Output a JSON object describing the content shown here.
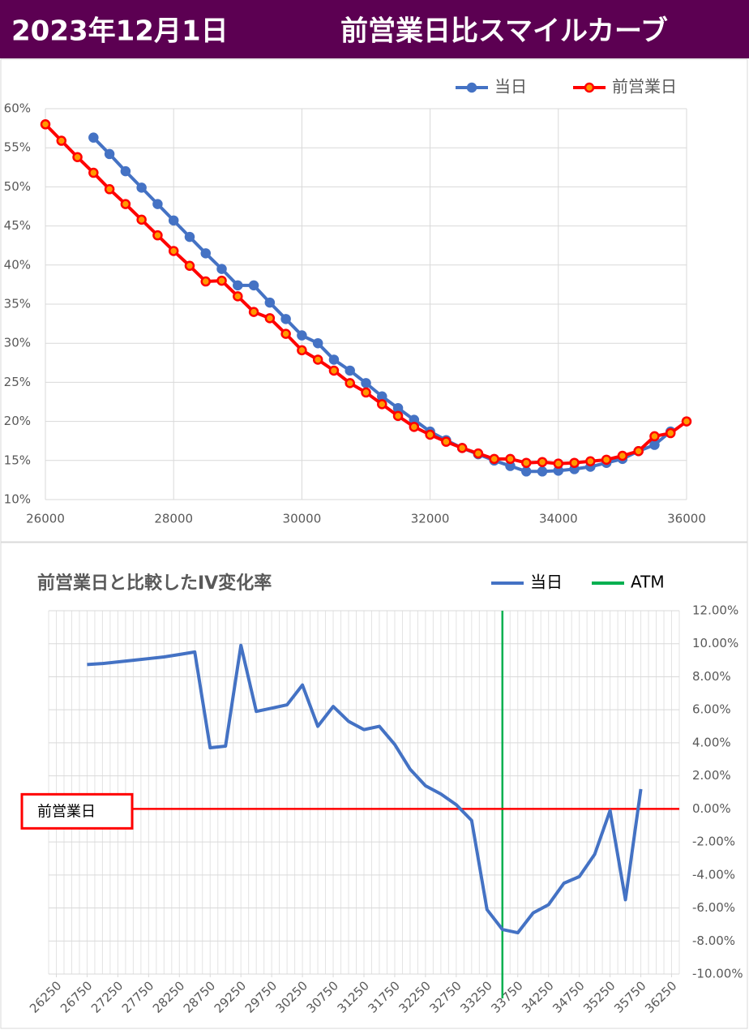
{
  "header": {
    "date": "2023年12月1日",
    "title": "前営業日比スマイルカーブ"
  },
  "chart_data": [
    {
      "type": "line",
      "x": [
        26000,
        26250,
        26500,
        26750,
        27000,
        27250,
        27500,
        27750,
        28000,
        28250,
        28500,
        28750,
        29000,
        29250,
        29500,
        29750,
        30000,
        30250,
        30500,
        30750,
        31000,
        31250,
        31500,
        31750,
        32000,
        32250,
        32500,
        32750,
        33000,
        33250,
        33500,
        33750,
        34000,
        34250,
        34500,
        34750,
        35000,
        35250,
        35500,
        35750,
        36000
      ],
      "series": [
        {
          "name": "当日",
          "color": "#4472c4",
          "markers": true,
          "marker_fill": "#4472c4",
          "values": [
            null,
            null,
            null,
            56.3,
            54.2,
            52.0,
            49.9,
            47.8,
            45.7,
            43.6,
            41.5,
            39.5,
            37.4,
            37.4,
            35.2,
            33.1,
            31.0,
            30.0,
            27.9,
            26.5,
            24.9,
            23.2,
            21.7,
            20.2,
            18.7,
            17.6,
            16.6,
            15.8,
            15.0,
            14.3,
            13.6,
            13.6,
            13.7,
            13.9,
            14.2,
            14.7,
            15.2,
            16.2,
            17.0,
            18.7,
            null
          ]
        },
        {
          "name": "前営業日",
          "color": "#ff0000",
          "markers": true,
          "marker_fill": "#ff9900",
          "values": [
            58.0,
            55.9,
            53.8,
            51.8,
            49.7,
            47.8,
            45.8,
            43.8,
            41.8,
            39.9,
            37.9,
            38.0,
            36.0,
            34.0,
            33.2,
            31.2,
            29.1,
            27.9,
            26.5,
            24.9,
            23.7,
            22.2,
            20.7,
            19.3,
            18.3,
            17.4,
            16.6,
            15.9,
            15.2,
            15.2,
            14.7,
            14.8,
            14.6,
            14.7,
            14.9,
            15.1,
            15.6,
            16.2,
            18.1,
            18.5,
            20.0
          ]
        }
      ],
      "xlim": [
        26000,
        36000
      ],
      "xticks": [
        26000,
        28000,
        30000,
        32000,
        34000,
        36000
      ],
      "ylim": [
        10,
        60
      ],
      "yticks": [
        {
          "value": 10,
          "label": "10%"
        },
        {
          "value": 15,
          "label": "15%"
        },
        {
          "value": 20,
          "label": "20%"
        },
        {
          "value": 25,
          "label": "25%"
        },
        {
          "value": 30,
          "label": "30%"
        },
        {
          "value": 35,
          "label": "35%"
        },
        {
          "value": 40,
          "label": "40%"
        },
        {
          "value": 45,
          "label": "45%"
        },
        {
          "value": 50,
          "label": "50%"
        },
        {
          "value": 55,
          "label": "55%"
        },
        {
          "value": 60,
          "label": "60%"
        }
      ],
      "grid": true,
      "legend": "top-right"
    },
    {
      "type": "line",
      "title": "前営業日と比較したIV変化率",
      "x": [
        26750,
        27000,
        27250,
        27500,
        27750,
        28000,
        28250,
        28500,
        28750,
        29000,
        29250,
        29500,
        29750,
        30000,
        30250,
        30500,
        30750,
        31000,
        31250,
        31500,
        31750,
        32000,
        32250,
        32500,
        32750,
        33000,
        33250,
        33500,
        33750,
        34000,
        34250,
        34500,
        34750,
        35000,
        35250,
        35500,
        35750
      ],
      "series": [
        {
          "name": "当日",
          "color": "#4472c4",
          "values": [
            8.74,
            8.8,
            8.9,
            9.0,
            9.1,
            9.2,
            9.35,
            9.5,
            3.7,
            3.8,
            9.9,
            5.9,
            6.1,
            6.3,
            7.5,
            5.0,
            6.2,
            5.3,
            4.8,
            5.0,
            3.9,
            2.4,
            1.4,
            0.9,
            0.25,
            -0.7,
            -6.1,
            -7.3,
            -7.5,
            -6.3,
            -5.8,
            -4.5,
            -4.1,
            -2.75,
            -0.1,
            -5.5,
            1.2
          ]
        }
      ],
      "xlim": [
        26125,
        36375
      ],
      "xticks": [
        26250,
        26750,
        27250,
        27750,
        28250,
        28750,
        29250,
        29750,
        30250,
        30750,
        31250,
        31750,
        32250,
        32750,
        33250,
        33750,
        34250,
        34750,
        35250,
        35750,
        36250
      ],
      "ylim": [
        -10,
        12
      ],
      "yticks": [
        {
          "value": 12,
          "label": "12.00%"
        },
        {
          "value": 10,
          "label": "10.00%"
        },
        {
          "value": 8,
          "label": "8.00%"
        },
        {
          "value": 6,
          "label": "6.00%"
        },
        {
          "value": 4,
          "label": "4.00%"
        },
        {
          "value": 2,
          "label": "2.00%"
        },
        {
          "value": 0,
          "label": "0.00%"
        },
        {
          "value": -2,
          "label": "-2.00%"
        },
        {
          "value": -4,
          "label": "-4.00%"
        },
        {
          "value": -6,
          "label": "-6.00%"
        },
        {
          "value": -8,
          "label": "-8.00%"
        },
        {
          "value": -10,
          "label": "-10.00%"
        }
      ],
      "y_axis_side": "right",
      "grid": true,
      "legend": "top-right",
      "hlines": [
        {
          "value": 0,
          "label": "前営業日",
          "color": "#ff0000"
        }
      ],
      "vlines": [
        {
          "value": 33500,
          "label": "ATM",
          "color": "#00b050"
        }
      ]
    }
  ]
}
